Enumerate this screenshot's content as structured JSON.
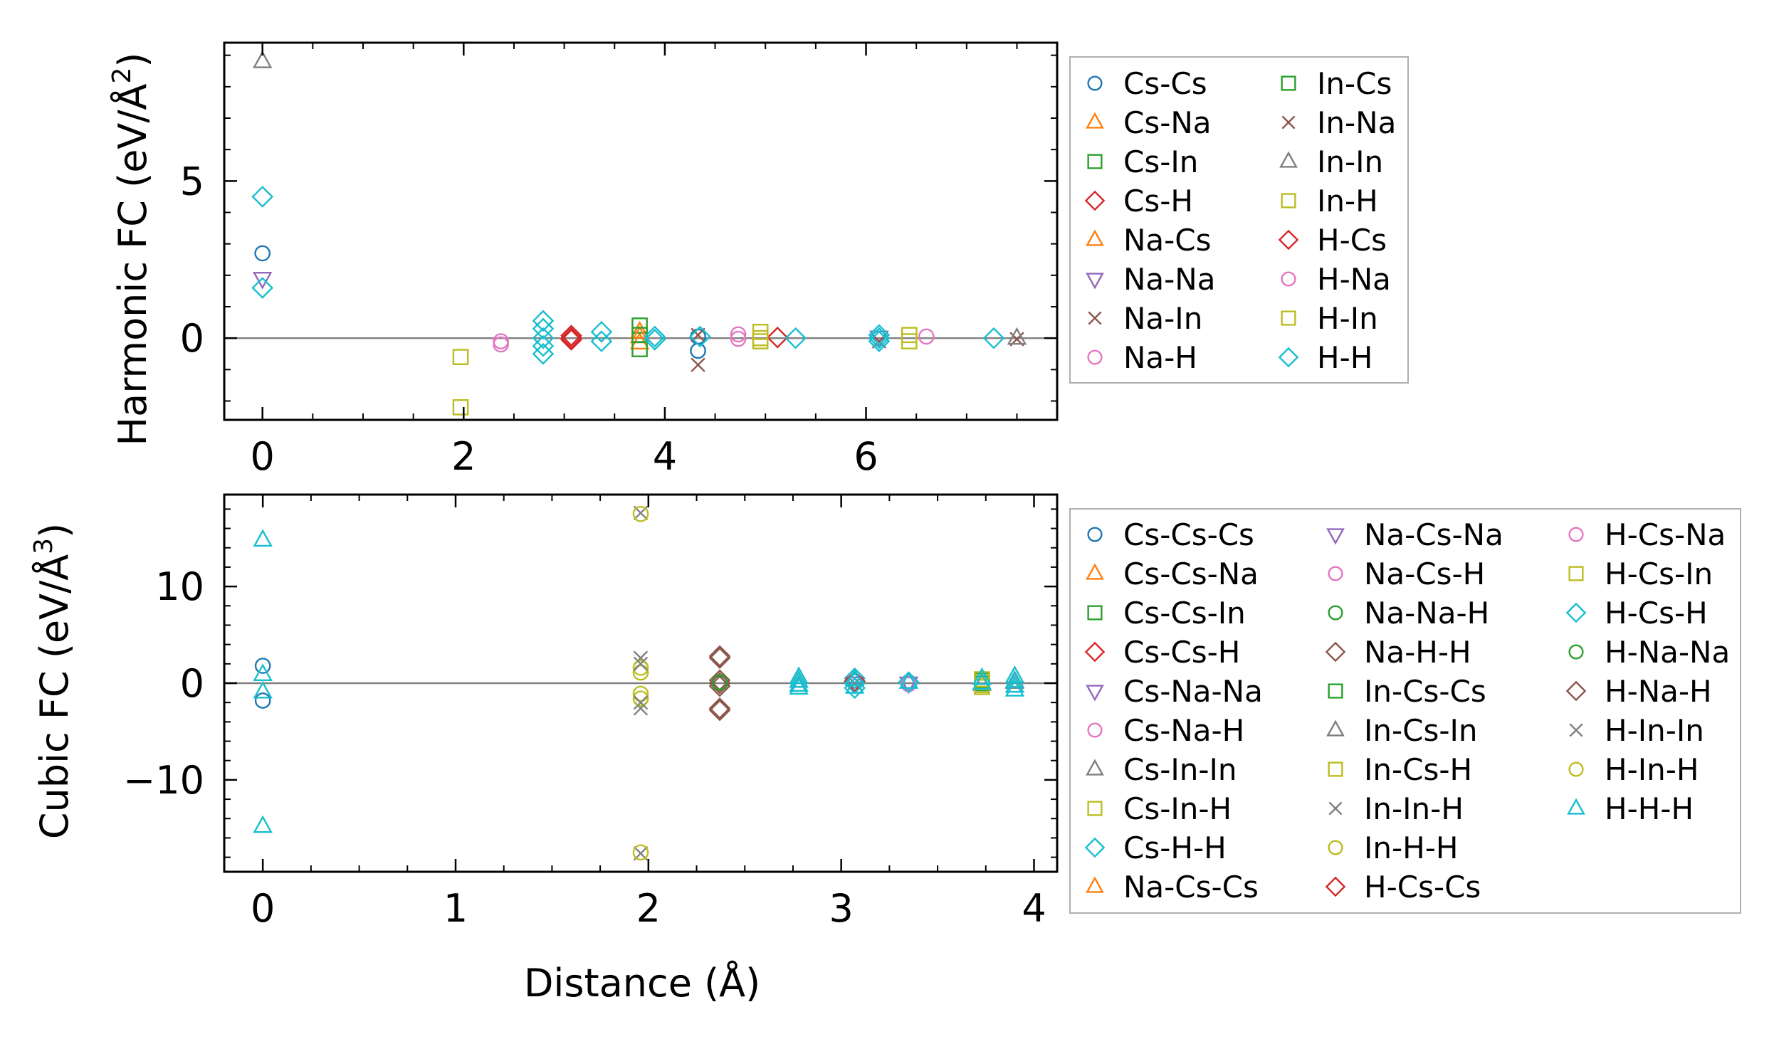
{
  "colors": {
    "blue": "#1f77b4",
    "orange": "#ff7f0e",
    "green": "#2ca02c",
    "red": "#d62728",
    "purple": "#9467bd",
    "brown": "#8c564b",
    "pink": "#e377c2",
    "gray": "#7f7f7f",
    "olive": "#bcbd22",
    "cyan": "#17becf"
  },
  "chart_data": [
    {
      "type": "scatter",
      "panel": "harmonic",
      "ylabel_main": "Harmonic FC (eV/Å",
      "ylabel_sup": "2",
      "ylabel_close": ")",
      "xlabel": "",
      "xlim": [
        -0.38,
        7.9
      ],
      "ylim": [
        -2.6,
        9.4
      ],
      "xticks": [
        0,
        2,
        4,
        6
      ],
      "xtick_labels": [
        "0",
        "2",
        "4",
        "6"
      ],
      "yticks": [
        0,
        5
      ],
      "ytick_labels": [
        "0",
        "5"
      ],
      "hline": 0,
      "legend_position": "outside-right",
      "legend_columns": 2,
      "series": [
        {
          "name": "Cs-Cs",
          "marker": "circle",
          "color": "blue",
          "points": [
            [
              0,
              2.7
            ],
            [
              4.33,
              -0.4
            ],
            [
              4.33,
              0.05
            ]
          ]
        },
        {
          "name": "Cs-Na",
          "marker": "triangle-up",
          "color": "orange",
          "points": [
            [
              3.75,
              0.2
            ],
            [
              3.75,
              -0.15
            ]
          ]
        },
        {
          "name": "Cs-In",
          "marker": "square",
          "color": "green",
          "points": [
            [
              3.75,
              0.4
            ],
            [
              3.75,
              -0.35
            ]
          ]
        },
        {
          "name": "Cs-H",
          "marker": "diamond",
          "color": "red",
          "points": [
            [
              3.07,
              0.0
            ],
            [
              3.07,
              -0.05
            ],
            [
              5.12,
              0.02
            ]
          ]
        },
        {
          "name": "Na-Cs",
          "marker": "triangle-up",
          "color": "orange",
          "points": [
            [
              3.75,
              0.05
            ]
          ]
        },
        {
          "name": "Na-Na",
          "marker": "triangle-down",
          "color": "purple",
          "points": [
            [
              0,
              1.9
            ],
            [
              6.13,
              0.03
            ]
          ]
        },
        {
          "name": "Na-In",
          "marker": "x",
          "color": "brown",
          "points": [
            [
              4.33,
              -0.85
            ],
            [
              4.33,
              0.1
            ],
            [
              7.5,
              -0.03
            ]
          ]
        },
        {
          "name": "Na-H",
          "marker": "circle",
          "color": "pink",
          "points": [
            [
              2.37,
              -0.1
            ],
            [
              2.37,
              -0.2
            ],
            [
              4.73,
              0.12
            ],
            [
              4.73,
              -0.02
            ]
          ]
        },
        {
          "name": "In-Cs",
          "marker": "square",
          "color": "green",
          "points": [
            [
              3.75,
              0.1
            ]
          ]
        },
        {
          "name": "In-Na",
          "marker": "x",
          "color": "brown",
          "points": [
            [
              6.13,
              -0.1
            ]
          ]
        },
        {
          "name": "In-In",
          "marker": "triangle-up",
          "color": "gray",
          "points": [
            [
              0,
              8.8
            ],
            [
              7.5,
              0.0
            ]
          ]
        },
        {
          "name": "In-H",
          "marker": "square",
          "color": "olive",
          "points": [
            [
              1.97,
              -2.2
            ],
            [
              1.97,
              -0.6
            ],
            [
              4.95,
              0.2
            ],
            [
              4.95,
              -0.1
            ],
            [
              6.43,
              0.1
            ],
            [
              6.43,
              -0.1
            ]
          ]
        },
        {
          "name": "H-Cs",
          "marker": "diamond",
          "color": "red",
          "points": [
            [
              3.07,
              0.08
            ]
          ]
        },
        {
          "name": "H-Na",
          "marker": "circle",
          "color": "pink",
          "points": [
            [
              6.6,
              0.05
            ]
          ]
        },
        {
          "name": "H-In",
          "marker": "square",
          "color": "olive",
          "points": [
            [
              4.95,
              0.0
            ]
          ]
        },
        {
          "name": "H-H",
          "marker": "diamond",
          "color": "cyan",
          "points": [
            [
              0,
              4.5
            ],
            [
              0,
              1.6
            ],
            [
              2.79,
              0.55
            ],
            [
              2.79,
              0.3
            ],
            [
              2.79,
              0.0
            ],
            [
              2.79,
              -0.25
            ],
            [
              2.79,
              -0.5
            ],
            [
              3.37,
              0.2
            ],
            [
              3.37,
              -0.1
            ],
            [
              3.9,
              0.05
            ],
            [
              3.9,
              -0.05
            ],
            [
              4.35,
              0.05
            ],
            [
              5.3,
              0.0
            ],
            [
              6.13,
              0.1
            ],
            [
              6.13,
              0.0
            ],
            [
              6.13,
              -0.1
            ],
            [
              7.27,
              0.0
            ]
          ]
        }
      ]
    },
    {
      "type": "scatter",
      "panel": "cubic",
      "ylabel_main": "Cubic FC (eV/Å",
      "ylabel_sup": "3",
      "ylabel_close": ")",
      "xlabel": "Distance (Å)",
      "xlim": [
        -0.2,
        4.12
      ],
      "ylim": [
        -19.5,
        19.5
      ],
      "xticks": [
        0,
        1,
        2,
        3,
        4
      ],
      "xtick_labels": [
        "0",
        "1",
        "2",
        "3",
        "4"
      ],
      "yticks": [
        -10,
        0,
        10
      ],
      "ytick_labels": [
        "−10",
        "0",
        "10"
      ],
      "hline": 0,
      "legend_position": "outside-right",
      "legend_columns": 3,
      "series": [
        {
          "name": "Cs-Cs-Cs",
          "marker": "circle",
          "color": "blue",
          "points": [
            [
              0,
              1.8
            ],
            [
              0,
              -1.8
            ]
          ]
        },
        {
          "name": "Cs-Cs-Na",
          "marker": "triangle-up",
          "color": "orange",
          "points": [
            [
              2.78,
              0.2
            ]
          ]
        },
        {
          "name": "Cs-Cs-In",
          "marker": "square",
          "color": "green",
          "points": [
            [
              3.73,
              0.3
            ]
          ]
        },
        {
          "name": "Cs-Cs-H",
          "marker": "diamond",
          "color": "red",
          "points": [
            [
              3.07,
              0.1
            ]
          ]
        },
        {
          "name": "Cs-Na-Na",
          "marker": "triangle-down",
          "color": "purple",
          "points": [
            [
              3.35,
              0.0
            ]
          ]
        },
        {
          "name": "Cs-Na-H",
          "marker": "circle",
          "color": "pink",
          "points": [
            [
              2.37,
              0.1
            ]
          ]
        },
        {
          "name": "Cs-In-In",
          "marker": "triangle-up",
          "color": "gray",
          "points": [
            [
              3.73,
              -0.1
            ]
          ]
        },
        {
          "name": "Cs-In-H",
          "marker": "square",
          "color": "olive",
          "points": [
            [
              3.73,
              0.4
            ],
            [
              3.73,
              -0.4
            ]
          ]
        },
        {
          "name": "Cs-H-H",
          "marker": "diamond",
          "color": "cyan",
          "points": [
            [
              3.07,
              0.5
            ],
            [
              3.07,
              -0.5
            ]
          ]
        },
        {
          "name": "Na-Cs-Cs",
          "marker": "triangle-up",
          "color": "orange",
          "points": [
            [
              3.9,
              0.2
            ]
          ]
        },
        {
          "name": "Na-Cs-Na",
          "marker": "triangle-down",
          "color": "purple",
          "points": [
            [
              3.07,
              0.0
            ]
          ]
        },
        {
          "name": "Na-Cs-H",
          "marker": "circle",
          "color": "pink",
          "points": [
            [
              3.35,
              0.1
            ]
          ]
        },
        {
          "name": "Na-Na-H",
          "marker": "circle",
          "color": "green",
          "points": [
            [
              2.37,
              0.0
            ]
          ]
        },
        {
          "name": "Na-H-H",
          "marker": "diamond",
          "color": "brown",
          "points": [
            [
              2.37,
              2.8
            ],
            [
              2.37,
              0.3
            ],
            [
              2.37,
              0.0
            ],
            [
              2.37,
              -0.3
            ],
            [
              2.37,
              -2.8
            ]
          ]
        },
        {
          "name": "In-Cs-Cs",
          "marker": "square",
          "color": "green",
          "points": [
            [
              3.73,
              0.0
            ]
          ]
        },
        {
          "name": "In-Cs-In",
          "marker": "triangle-up",
          "color": "gray",
          "points": [
            [
              3.9,
              0.1
            ]
          ]
        },
        {
          "name": "In-Cs-H",
          "marker": "square",
          "color": "olive",
          "points": [
            [
              3.73,
              0.1
            ]
          ]
        },
        {
          "name": "In-In-H",
          "marker": "x",
          "color": "gray",
          "points": [
            [
              1.96,
              17.6
            ],
            [
              1.96,
              2.6
            ],
            [
              1.96,
              -2.6
            ],
            [
              1.96,
              -17.6
            ]
          ]
        },
        {
          "name": "In-H-H",
          "marker": "circle",
          "color": "olive",
          "points": [
            [
              1.96,
              1.6
            ],
            [
              1.96,
              1.1
            ],
            [
              1.96,
              -1.1
            ],
            [
              1.96,
              -1.6
            ]
          ]
        },
        {
          "name": "H-Cs-Cs",
          "marker": "diamond",
          "color": "red",
          "points": [
            [
              3.07,
              0.2
            ]
          ]
        },
        {
          "name": "H-Cs-Na",
          "marker": "circle",
          "color": "pink",
          "points": [
            [
              3.35,
              -0.1
            ]
          ]
        },
        {
          "name": "H-Cs-In",
          "marker": "square",
          "color": "olive",
          "points": [
            [
              3.73,
              -0.2
            ]
          ]
        },
        {
          "name": "H-Cs-H",
          "marker": "diamond",
          "color": "cyan",
          "points": [
            [
              3.07,
              0.0
            ],
            [
              3.35,
              0.1
            ]
          ]
        },
        {
          "name": "H-Na-Na",
          "marker": "circle",
          "color": "green",
          "points": [
            [
              2.37,
              0.1
            ]
          ]
        },
        {
          "name": "H-Na-H",
          "marker": "diamond",
          "color": "brown",
          "points": [
            [
              2.37,
              2.6
            ],
            [
              2.37,
              -2.6
            ]
          ]
        },
        {
          "name": "H-In-In",
          "marker": "x",
          "color": "gray",
          "points": [
            [
              1.96,
              2.0
            ],
            [
              1.96,
              -2.0
            ],
            [
              3.07,
              0.0
            ]
          ]
        },
        {
          "name": "H-In-H",
          "marker": "circle",
          "color": "olive",
          "points": [
            [
              1.96,
              17.5
            ],
            [
              1.96,
              -17.5
            ]
          ]
        },
        {
          "name": "H-H-H",
          "marker": "triangle-up",
          "color": "cyan",
          "points": [
            [
              0,
              14.8
            ],
            [
              0,
              0.9
            ],
            [
              0,
              -0.9
            ],
            [
              0,
              -14.8
            ],
            [
              2.78,
              0.6
            ],
            [
              2.78,
              0.2
            ],
            [
              2.78,
              -0.2
            ],
            [
              2.78,
              -0.5
            ],
            [
              3.07,
              0.4
            ],
            [
              3.07,
              -0.4
            ],
            [
              3.35,
              0.1
            ],
            [
              3.73,
              0.5
            ],
            [
              3.73,
              0.0
            ],
            [
              3.9,
              0.7
            ],
            [
              3.9,
              0.2
            ],
            [
              3.9,
              -0.3
            ],
            [
              3.9,
              -0.7
            ]
          ]
        }
      ]
    }
  ]
}
